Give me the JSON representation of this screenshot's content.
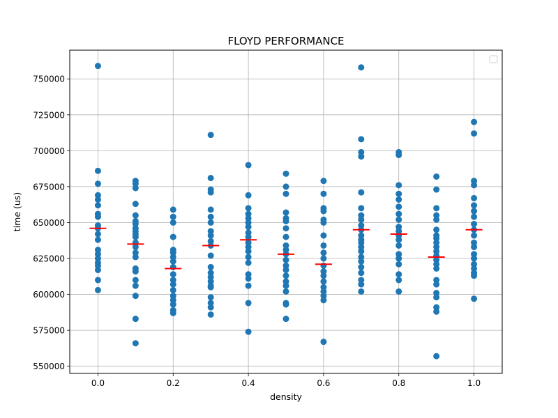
{
  "chart_data": {
    "type": "scatter",
    "title": "FLOYD PERFORMANCE",
    "xlabel": "density",
    "ylabel": "time (us)",
    "xlim": [
      -0.075,
      1.075
    ],
    "ylim": [
      545000,
      770000
    ],
    "x_ticks": [
      0.0,
      0.2,
      0.4,
      0.6,
      0.8,
      1.0
    ],
    "x_tick_labels": [
      "0.0",
      "0.2",
      "0.4",
      "0.6",
      "0.8",
      "1.0"
    ],
    "y_ticks": [
      550000,
      575000,
      600000,
      625000,
      650000,
      675000,
      700000,
      725000,
      750000
    ],
    "y_tick_labels": [
      "550000",
      "575000",
      "600000",
      "625000",
      "650000",
      "675000",
      "700000",
      "725000",
      "750000"
    ],
    "grid": true,
    "legend": {
      "placement": "top-right",
      "entries": []
    },
    "point_color": "#1f77b4",
    "mean_color": "#ff0000",
    "series": [
      {
        "x": 0.0,
        "values": [
          759000,
          686000,
          677000,
          669000,
          666000,
          662000,
          656000,
          654000,
          648000,
          646000,
          642000,
          638000,
          631000,
          628000,
          625000,
          622000,
          620000,
          617000,
          610000,
          603000
        ],
        "mean": 646000
      },
      {
        "x": 0.1,
        "values": [
          679000,
          677000,
          674000,
          663000,
          655000,
          651000,
          649000,
          646000,
          644000,
          642000,
          640000,
          636000,
          633000,
          629000,
          626000,
          618000,
          616000,
          610000,
          606000,
          599000,
          583000,
          566000
        ],
        "mean": 635000
      },
      {
        "x": 0.2,
        "values": [
          659000,
          654000,
          650000,
          640000,
          631000,
          629000,
          626000,
          623000,
          619000,
          614000,
          610000,
          607000,
          603000,
          599000,
          596000,
          593000,
          589000,
          587000
        ],
        "mean": 618000
      },
      {
        "x": 0.3,
        "values": [
          711000,
          681000,
          673000,
          671000,
          659000,
          654000,
          650000,
          644000,
          641000,
          637000,
          634000,
          627000,
          619000,
          615000,
          612000,
          609000,
          606000,
          605000,
          598000,
          594000,
          591000,
          586000
        ],
        "mean": 634000
      },
      {
        "x": 0.4,
        "values": [
          690000,
          669000,
          660000,
          656000,
          653000,
          650000,
          647000,
          643000,
          640000,
          636000,
          633000,
          630000,
          626000,
          622000,
          614000,
          611000,
          606000,
          594000,
          574000
        ],
        "mean": 638000
      },
      {
        "x": 0.5,
        "values": [
          684000,
          675000,
          670000,
          657000,
          653000,
          651000,
          646000,
          640000,
          634000,
          631000,
          628000,
          624000,
          620000,
          617000,
          613000,
          609000,
          606000,
          602000,
          594000,
          593000,
          583000
        ],
        "mean": 628000
      },
      {
        "x": 0.6,
        "values": [
          679000,
          670000,
          660000,
          658000,
          652000,
          650000,
          641000,
          634000,
          629000,
          625000,
          620000,
          616000,
          613000,
          609000,
          605000,
          602000,
          599000,
          596000,
          567000
        ],
        "mean": 621000
      },
      {
        "x": 0.7,
        "values": [
          758000,
          708000,
          699000,
          696000,
          671000,
          660000,
          655000,
          652000,
          648000,
          645000,
          641000,
          638000,
          636000,
          633000,
          630000,
          626000,
          623000,
          619000,
          615000,
          610000,
          607000,
          602000
        ],
        "mean": 645000
      },
      {
        "x": 0.8,
        "values": [
          699000,
          697000,
          676000,
          670000,
          666000,
          661000,
          656000,
          652000,
          647000,
          644000,
          641000,
          638000,
          634000,
          628000,
          625000,
          621000,
          614000,
          610000,
          602000
        ],
        "mean": 642000
      },
      {
        "x": 0.9,
        "values": [
          682000,
          673000,
          660000,
          655000,
          652000,
          645000,
          641000,
          639000,
          636000,
          633000,
          630000,
          627000,
          624000,
          621000,
          618000,
          610000,
          607000,
          601000,
          598000,
          591000,
          588000,
          557000
        ],
        "mean": 626000
      },
      {
        "x": 1.0,
        "values": [
          720000,
          712000,
          679000,
          676000,
          667000,
          662000,
          658000,
          654000,
          649000,
          645000,
          641000,
          636000,
          633000,
          628000,
          625000,
          621000,
          618000,
          615000,
          613000,
          597000
        ],
        "mean": 645000
      }
    ]
  }
}
